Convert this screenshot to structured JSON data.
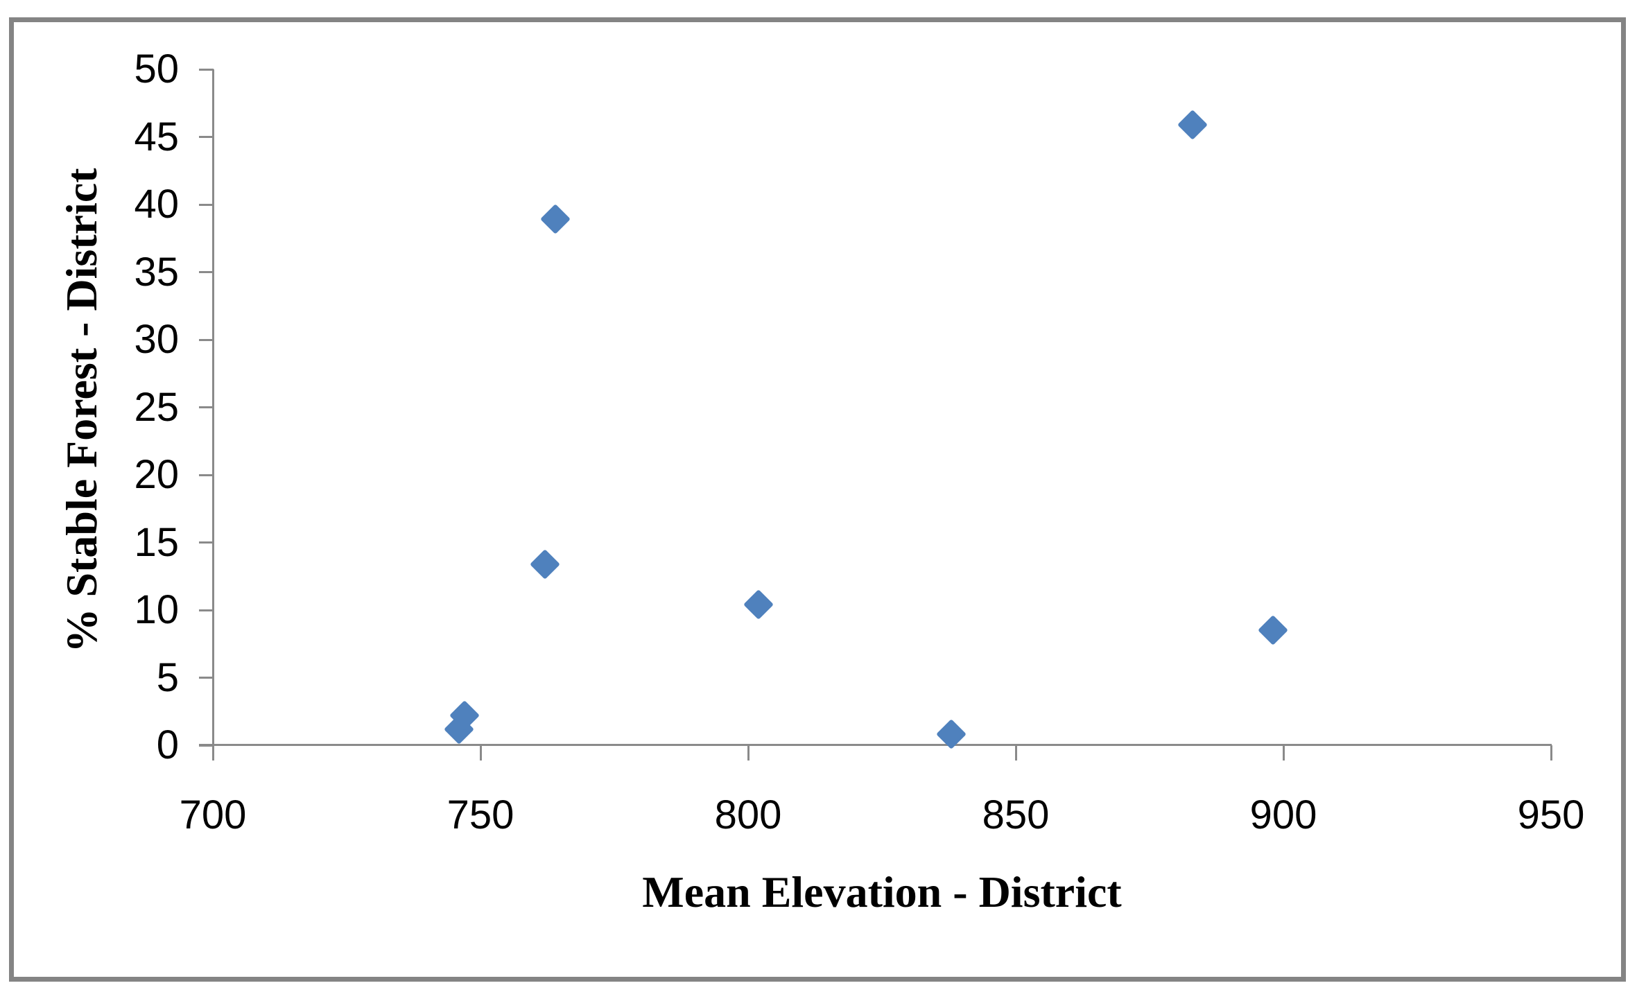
{
  "chart_data": {
    "type": "scatter",
    "title": "",
    "xlabel": "Mean Elevation - District",
    "ylabel": "% Stable Forest - District",
    "xlim": [
      700,
      950
    ],
    "ylim": [
      0,
      50
    ],
    "x_ticks": [
      700,
      750,
      800,
      850,
      900,
      950
    ],
    "y_ticks": [
      0,
      5,
      10,
      15,
      20,
      25,
      30,
      35,
      40,
      45,
      50
    ],
    "grid": false,
    "legend_position": "none",
    "marker_shape": "diamond",
    "marker_color": "#4f81bd",
    "axis_color": "#8a8a8a",
    "text_color": "#000000",
    "frame_color": "#848484",
    "series": [
      {
        "name": "",
        "points": [
          {
            "x": 746,
            "y": 1.2
          },
          {
            "x": 747,
            "y": 2.2
          },
          {
            "x": 762,
            "y": 13.4
          },
          {
            "x": 764,
            "y": 38.9
          },
          {
            "x": 802,
            "y": 10.4
          },
          {
            "x": 838,
            "y": 0.8
          },
          {
            "x": 883,
            "y": 45.9
          },
          {
            "x": 898,
            "y": 8.5
          }
        ]
      }
    ]
  }
}
